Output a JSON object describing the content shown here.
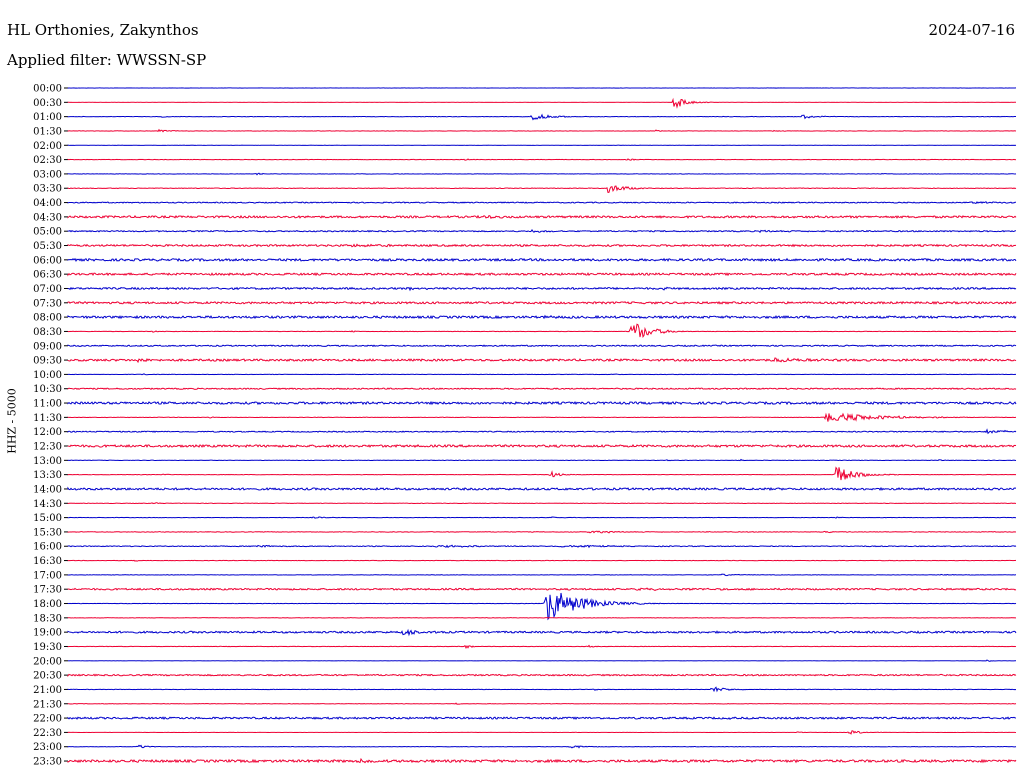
{
  "header": {
    "station": "HL Orthonies, Zakynthos",
    "date": "2024-07-16",
    "filter": "Applied filter: WWSSN-SP",
    "channel": "HHZ - 5000"
  },
  "colors": {
    "even": "#0000cc",
    "odd": "#ee0033",
    "text": "#000000"
  },
  "chart_data": {
    "type": "line",
    "ylabel": "HHZ - 5000",
    "rows": [
      {
        "label": "00:00",
        "noise": 0.1,
        "events": []
      },
      {
        "label": "00:30",
        "noise": 0.1,
        "events": [
          {
            "t": 0.64,
            "amp": 7,
            "dur": 0.012
          }
        ]
      },
      {
        "label": "01:00",
        "noise": 0.2,
        "events": [
          {
            "t": 0.49,
            "amp": 3,
            "dur": 0.02
          },
          {
            "t": 0.775,
            "amp": 2,
            "dur": 0.015
          },
          {
            "t": 0.1,
            "amp": 1,
            "dur": 0.005
          }
        ]
      },
      {
        "label": "01:30",
        "noise": 0.2,
        "events": [
          {
            "t": 0.095,
            "amp": 1.5,
            "dur": 0.012
          },
          {
            "t": 0.62,
            "amp": 1,
            "dur": 0.005
          },
          {
            "t": 0.745,
            "amp": 1,
            "dur": 0.006
          }
        ]
      },
      {
        "label": "02:00",
        "noise": 0.1,
        "events": []
      },
      {
        "label": "02:30",
        "noise": 0.2,
        "events": [
          {
            "t": 0.59,
            "amp": 1,
            "dur": 0.008
          },
          {
            "t": 0.42,
            "amp": 0.8,
            "dur": 0.005
          }
        ]
      },
      {
        "label": "03:00",
        "noise": 0.2,
        "events": [
          {
            "t": 0.2,
            "amp": 1,
            "dur": 0.006
          },
          {
            "t": 0.86,
            "amp": 0.8,
            "dur": 0.005
          }
        ]
      },
      {
        "label": "03:30",
        "noise": 0.3,
        "events": [
          {
            "t": 0.57,
            "amp": 5,
            "dur": 0.015
          }
        ]
      },
      {
        "label": "04:00",
        "noise": 0.5,
        "events": [
          {
            "t": 0.95,
            "amp": 1,
            "dur": 0.05
          }
        ]
      },
      {
        "label": "04:30",
        "noise": 1.0,
        "events": [
          {
            "t": 0.44,
            "amp": 2,
            "dur": 0.01
          }
        ]
      },
      {
        "label": "05:00",
        "noise": 0.6,
        "events": [
          {
            "t": 0.49,
            "amp": 1.5,
            "dur": 0.01
          },
          {
            "t": 0.73,
            "amp": 1.2,
            "dur": 0.02
          }
        ]
      },
      {
        "label": "05:30",
        "noise": 0.9,
        "events": [
          {
            "t": 0.3,
            "amp": 1.3,
            "dur": 0.03
          }
        ]
      },
      {
        "label": "06:00",
        "noise": 1.1,
        "events": []
      },
      {
        "label": "06:30",
        "noise": 1.0,
        "events": []
      },
      {
        "label": "07:00",
        "noise": 0.9,
        "events": [
          {
            "t": 0.36,
            "amp": 1.5,
            "dur": 0.01
          },
          {
            "t": 0.63,
            "amp": 1.5,
            "dur": 0.01
          }
        ]
      },
      {
        "label": "07:30",
        "noise": 1.0,
        "events": []
      },
      {
        "label": "08:00",
        "noise": 1.1,
        "events": [
          {
            "t": 0.5,
            "amp": 1.5,
            "dur": 0.01
          }
        ]
      },
      {
        "label": "08:30",
        "noise": 0.2,
        "events": [
          {
            "t": 0.595,
            "amp": 11,
            "dur": 0.018
          },
          {
            "t": 0.3,
            "amp": 1,
            "dur": 0.004
          },
          {
            "t": 0.09,
            "amp": 1,
            "dur": 0.004
          }
        ]
      },
      {
        "label": "09:00",
        "noise": 0.6,
        "events": []
      },
      {
        "label": "09:30",
        "noise": 1.0,
        "events": [
          {
            "t": 0.745,
            "amp": 3,
            "dur": 0.025
          },
          {
            "t": 0.075,
            "amp": 2,
            "dur": 0.006
          }
        ]
      },
      {
        "label": "10:00",
        "noise": 0.2,
        "events": [
          {
            "t": 0.08,
            "amp": 1,
            "dur": 0.004
          },
          {
            "t": 0.575,
            "amp": 0.8,
            "dur": 0.004
          }
        ]
      },
      {
        "label": "10:30",
        "noise": 0.6,
        "events": []
      },
      {
        "label": "11:00",
        "noise": 1.1,
        "events": []
      },
      {
        "label": "11:30",
        "noise": 0.2,
        "events": [
          {
            "t": 0.8,
            "amp": 5,
            "dur": 0.05
          },
          {
            "t": 0.15,
            "amp": 1,
            "dur": 0.004
          }
        ]
      },
      {
        "label": "12:00",
        "noise": 0.5,
        "events": [
          {
            "t": 0.97,
            "amp": 2,
            "dur": 0.02
          }
        ]
      },
      {
        "label": "12:30",
        "noise": 1.1,
        "events": []
      },
      {
        "label": "13:00",
        "noise": 0.2,
        "events": [
          {
            "t": 0.63,
            "amp": 1,
            "dur": 0.004
          },
          {
            "t": 0.71,
            "amp": 0.8,
            "dur": 0.004
          },
          {
            "t": 0.92,
            "amp": 1,
            "dur": 0.004
          }
        ]
      },
      {
        "label": "13:30",
        "noise": 0.2,
        "events": [
          {
            "t": 0.81,
            "amp": 9,
            "dur": 0.018
          },
          {
            "t": 0.51,
            "amp": 3,
            "dur": 0.008
          },
          {
            "t": 0.1,
            "amp": 1,
            "dur": 0.004
          }
        ]
      },
      {
        "label": "14:00",
        "noise": 1.0,
        "events": []
      },
      {
        "label": "14:30",
        "noise": 0.2,
        "events": [
          {
            "t": 0.09,
            "amp": 1,
            "dur": 0.004
          }
        ]
      },
      {
        "label": "15:00",
        "noise": 0.2,
        "events": [
          {
            "t": 0.26,
            "amp": 1,
            "dur": 0.01
          },
          {
            "t": 0.51,
            "amp": 1,
            "dur": 0.01
          },
          {
            "t": 0.81,
            "amp": 1,
            "dur": 0.005
          }
        ]
      },
      {
        "label": "15:30",
        "noise": 0.3,
        "events": [
          {
            "t": 0.55,
            "amp": 1.2,
            "dur": 0.03
          },
          {
            "t": 0.8,
            "amp": 1.2,
            "dur": 0.006
          }
        ]
      },
      {
        "label": "16:00",
        "noise": 0.4,
        "events": [
          {
            "t": 0.2,
            "amp": 1.2,
            "dur": 0.02
          },
          {
            "t": 0.39,
            "amp": 1.2,
            "dur": 0.04
          },
          {
            "t": 0.52,
            "amp": 1.2,
            "dur": 0.04
          }
        ]
      },
      {
        "label": "16:30",
        "noise": 0.2,
        "events": [
          {
            "t": 0.07,
            "amp": 1,
            "dur": 0.004
          }
        ]
      },
      {
        "label": "17:00",
        "noise": 0.2,
        "events": [
          {
            "t": 0.69,
            "amp": 1,
            "dur": 0.015
          },
          {
            "t": 0.92,
            "amp": 1,
            "dur": 0.015
          }
        ]
      },
      {
        "label": "17:30",
        "noise": 0.8,
        "events": [
          {
            "t": 0.6,
            "amp": 1.2,
            "dur": 0.05
          }
        ]
      },
      {
        "label": "18:00",
        "noise": 0.2,
        "events": [
          {
            "t": 0.505,
            "amp": 19,
            "dur": 0.03
          }
        ]
      },
      {
        "label": "18:30",
        "noise": 0.2,
        "events": []
      },
      {
        "label": "19:00",
        "noise": 0.9,
        "events": [
          {
            "t": 0.355,
            "amp": 4,
            "dur": 0.01
          }
        ]
      },
      {
        "label": "19:30",
        "noise": 0.2,
        "events": [
          {
            "t": 0.42,
            "amp": 1.5,
            "dur": 0.006
          },
          {
            "t": 0.55,
            "amp": 1.5,
            "dur": 0.006
          }
        ]
      },
      {
        "label": "20:00",
        "noise": 0.1,
        "events": [
          {
            "t": 0.97,
            "amp": 1,
            "dur": 0.004
          }
        ]
      },
      {
        "label": "20:30",
        "noise": 0.7,
        "events": []
      },
      {
        "label": "21:00",
        "noise": 0.2,
        "events": [
          {
            "t": 0.68,
            "amp": 3,
            "dur": 0.015
          },
          {
            "t": 0.555,
            "amp": 1,
            "dur": 0.004
          }
        ]
      },
      {
        "label": "21:30",
        "noise": 0.2,
        "events": [
          {
            "t": 0.14,
            "amp": 1,
            "dur": 0.004
          },
          {
            "t": 0.41,
            "amp": 1,
            "dur": 0.004
          }
        ]
      },
      {
        "label": "22:00",
        "noise": 0.9,
        "events": [
          {
            "t": 0.7,
            "amp": 1.5,
            "dur": 0.006
          }
        ]
      },
      {
        "label": "22:30",
        "noise": 0.1,
        "events": [
          {
            "t": 0.825,
            "amp": 2,
            "dur": 0.012
          },
          {
            "t": 0.77,
            "amp": 0.8,
            "dur": 0.004
          }
        ]
      },
      {
        "label": "23:00",
        "noise": 0.2,
        "events": [
          {
            "t": 0.075,
            "amp": 2,
            "dur": 0.008
          },
          {
            "t": 0.53,
            "amp": 2,
            "dur": 0.012
          }
        ]
      },
      {
        "label": "23:30",
        "noise": 1.2,
        "events": [
          {
            "t": 0.31,
            "amp": 2,
            "dur": 0.006
          }
        ]
      }
    ]
  }
}
